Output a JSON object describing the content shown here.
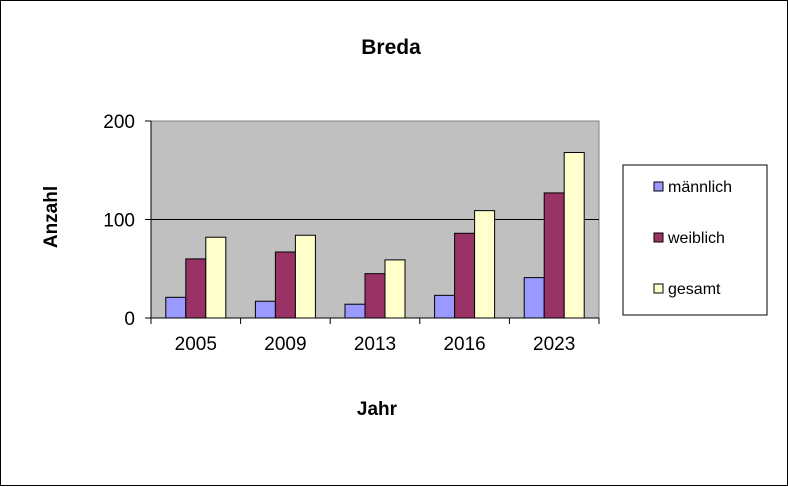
{
  "chart_data": {
    "type": "bar",
    "title": "Breda",
    "xlabel": "Jahr",
    "ylabel": "Anzahl",
    "categories": [
      "2005",
      "2009",
      "2013",
      "2016",
      "2023"
    ],
    "series": [
      {
        "name": "männlich",
        "values": [
          21,
          17,
          14,
          23,
          41
        ],
        "color": "#9999ff"
      },
      {
        "name": "weiblich",
        "values": [
          60,
          67,
          45,
          86,
          127
        ],
        "color": "#993366"
      },
      {
        "name": "gesamt",
        "values": [
          82,
          84,
          59,
          109,
          168
        ],
        "color": "#ffffcc"
      }
    ],
    "ylim": [
      0,
      200
    ],
    "yticks": [
      0,
      100,
      200
    ],
    "grid": true,
    "legend": "right",
    "plot_background": "#c0c0c0"
  }
}
